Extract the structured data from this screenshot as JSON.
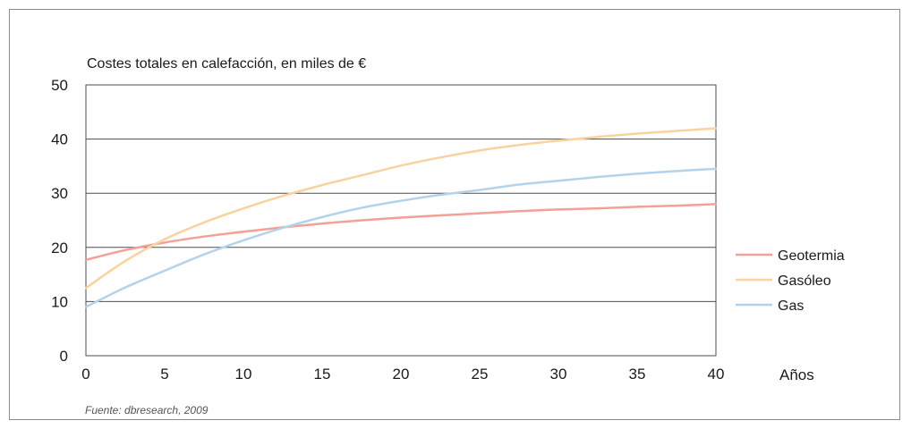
{
  "chart_data": {
    "type": "line",
    "title": "Costes totales en calefacción, en miles de €",
    "xlabel": "Años",
    "ylabel": "",
    "source": "Fuente: dbresearch, 2009",
    "xlim": [
      0,
      40
    ],
    "ylim": [
      0,
      50
    ],
    "xticks": [
      0,
      5,
      10,
      15,
      20,
      25,
      30,
      35,
      40
    ],
    "yticks": [
      0,
      10,
      20,
      30,
      40,
      50
    ],
    "grid": "horizontal",
    "legend_position": "right",
    "x": [
      0,
      2.5,
      5,
      7.5,
      10,
      12.5,
      15,
      17.5,
      20,
      22.5,
      25,
      27.5,
      30,
      32.5,
      35,
      37.5,
      40
    ],
    "series": [
      {
        "name": "Geotermia",
        "color": "#f4a096",
        "values": [
          17.7,
          19.5,
          20.9,
          22.0,
          22.9,
          23.7,
          24.4,
          25.0,
          25.5,
          25.9,
          26.3,
          26.7,
          27.0,
          27.2,
          27.5,
          27.7,
          28.0
        ]
      },
      {
        "name": "Gasóleo",
        "color": "#f9d39e",
        "values": [
          12.5,
          17.5,
          21.5,
          24.6,
          27.2,
          29.5,
          31.5,
          33.3,
          35.1,
          36.6,
          37.9,
          38.9,
          39.7,
          40.4,
          41.0,
          41.5,
          42.0
        ]
      },
      {
        "name": "Gas",
        "color": "#b3d3ea",
        "values": [
          9.0,
          12.6,
          15.7,
          18.7,
          21.3,
          23.6,
          25.6,
          27.3,
          28.6,
          29.7,
          30.6,
          31.6,
          32.3,
          33.0,
          33.6,
          34.1,
          34.5
        ]
      }
    ]
  }
}
